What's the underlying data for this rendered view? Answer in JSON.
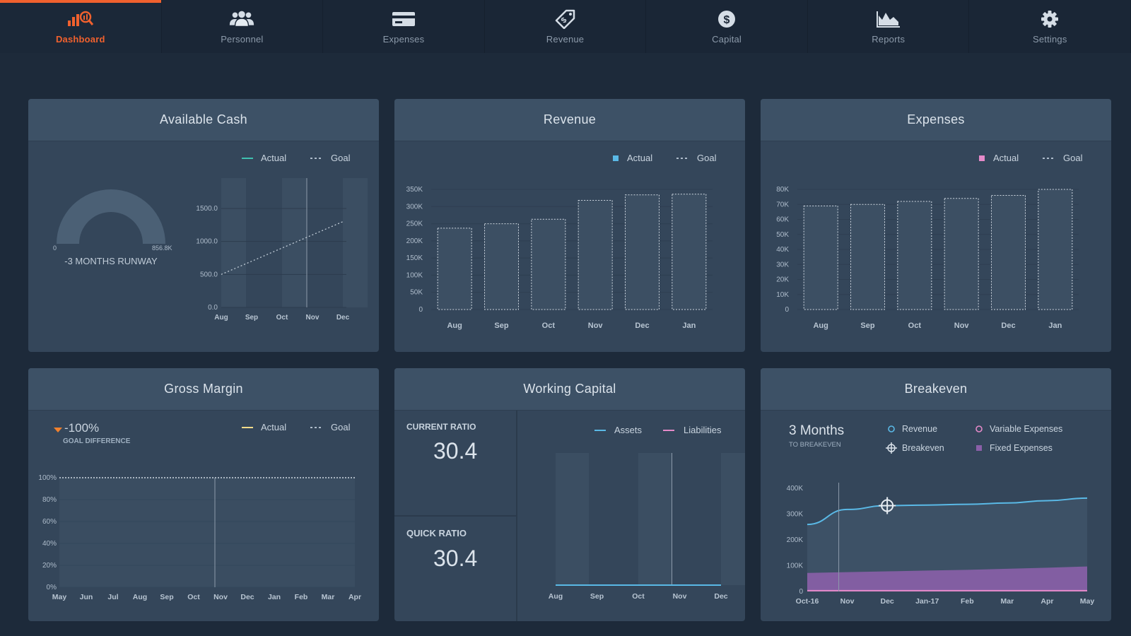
{
  "colors": {
    "accent": "#f0612e",
    "background": "#1d2a3a",
    "panel": "#34465a",
    "panel_header": "#3d5166",
    "cash_actual": "#3fc1b0",
    "revenue_actual": "#5ab9e6",
    "expenses_actual": "#e58ac9",
    "margin_actual": "#f3dc8a",
    "assets": "#5ab9e6",
    "liabilities": "#e58ac9",
    "fixed_expenses": "#8a5fa8"
  },
  "nav": {
    "items": [
      {
        "label": "Dashboard",
        "icon": "dashboard-chart-icon",
        "active": true
      },
      {
        "label": "Personnel",
        "icon": "people-icon",
        "active": false
      },
      {
        "label": "Expenses",
        "icon": "credit-card-icon",
        "active": false
      },
      {
        "label": "Revenue",
        "icon": "price-tag-icon",
        "active": false
      },
      {
        "label": "Capital",
        "icon": "dollar-coin-icon",
        "active": false
      },
      {
        "label": "Reports",
        "icon": "area-chart-icon",
        "active": false
      },
      {
        "label": "Settings",
        "icon": "gear-icon",
        "active": false
      }
    ]
  },
  "panels": {
    "cash": {
      "title": "Available Cash",
      "legend_actual": "Actual",
      "legend_goal": "Goal",
      "gauge_min": "0",
      "gauge_max": "856.8K",
      "runway": "-3 MONTHS RUNWAY"
    },
    "revenue": {
      "title": "Revenue",
      "legend_actual": "Actual",
      "legend_goal": "Goal"
    },
    "expenses": {
      "title": "Expenses",
      "legend_actual": "Actual",
      "legend_goal": "Goal"
    },
    "margin": {
      "title": "Gross Margin",
      "legend_actual": "Actual",
      "legend_goal": "Goal",
      "difference_value": "-100%",
      "difference_label": "GOAL DIFFERENCE"
    },
    "working_capital": {
      "title": "Working Capital",
      "current_ratio_label": "CURRENT RATIO",
      "current_ratio_value": "30.4",
      "quick_ratio_label": "QUICK RATIO",
      "quick_ratio_value": "30.4",
      "legend_assets": "Assets",
      "legend_liabilities": "Liabilities"
    },
    "breakeven": {
      "title": "Breakeven",
      "months_value": "3 Months",
      "months_label": "TO BREAKEVEN",
      "legend_revenue": "Revenue",
      "legend_variable": "Variable Expenses",
      "legend_breakeven": "Breakeven",
      "legend_fixed": "Fixed Expenses"
    }
  },
  "chart_data": [
    {
      "id": "cash",
      "type": "line",
      "title": "Available Cash",
      "categories": [
        "Aug",
        "Sep",
        "Oct",
        "Nov",
        "Dec"
      ],
      "y_ticks": [
        "0.0",
        "500.0",
        "1000.0",
        "1500.0"
      ],
      "ylim": [
        0,
        1500
      ],
      "goal_start": 500,
      "goal_end": 1300,
      "highlight": "Nov",
      "gauge": {
        "min": "0",
        "max": "856.8K",
        "fill": 1.0
      }
    },
    {
      "id": "revenue",
      "type": "bar",
      "title": "Revenue",
      "categories": [
        "Aug",
        "Sep",
        "Oct",
        "Nov",
        "Dec",
        "Jan"
      ],
      "goal_values": [
        237,
        250,
        263,
        318,
        334,
        336
      ],
      "actual_values": [
        0,
        0,
        0,
        0,
        0,
        0
      ],
      "y_ticks": [
        "0",
        "50K",
        "100K",
        "150K",
        "200K",
        "250K",
        "300K",
        "350K"
      ],
      "ylim": [
        0,
        350
      ]
    },
    {
      "id": "expenses",
      "type": "bar",
      "title": "Expenses",
      "categories": [
        "Aug",
        "Sep",
        "Oct",
        "Nov",
        "Dec",
        "Jan"
      ],
      "goal_values": [
        69,
        70,
        72,
        74,
        76,
        80
      ],
      "actual_values": [
        0,
        0,
        0,
        0,
        0,
        0
      ],
      "y_ticks": [
        "0",
        "10K",
        "20K",
        "30K",
        "40K",
        "50K",
        "60K",
        "70K",
        "80K"
      ],
      "ylim": [
        0,
        80
      ]
    },
    {
      "id": "margin",
      "type": "line",
      "title": "Gross Margin",
      "categories": [
        "May",
        "Jun",
        "Jul",
        "Aug",
        "Sep",
        "Oct",
        "Nov",
        "Dec",
        "Jan",
        "Feb",
        "Mar",
        "Apr"
      ],
      "y_ticks": [
        "0%",
        "20%",
        "40%",
        "60%",
        "80%",
        "100%"
      ],
      "ylim": [
        0,
        100
      ],
      "goal_values": [
        100,
        100,
        100,
        100,
        100,
        100,
        100,
        100,
        100,
        100,
        100,
        100
      ],
      "actual_values": [
        0,
        0,
        0,
        0,
        0,
        0,
        0,
        0,
        0,
        0,
        0,
        0
      ],
      "highlight": "Nov"
    },
    {
      "id": "working_capital",
      "type": "line",
      "title": "Working Capital",
      "categories": [
        "Aug",
        "Sep",
        "Oct",
        "Nov",
        "Dec"
      ],
      "series": [
        {
          "name": "Assets",
          "values": [
            0,
            0,
            0,
            0,
            0
          ]
        },
        {
          "name": "Liabilities",
          "values": [
            0,
            0,
            0,
            0,
            0
          ]
        }
      ],
      "highlight": "Nov"
    },
    {
      "id": "breakeven",
      "type": "area",
      "title": "Breakeven",
      "categories": [
        "Oct-16",
        "Nov",
        "Dec",
        "Jan-17",
        "Feb",
        "Mar",
        "Apr",
        "May"
      ],
      "y_ticks": [
        "0",
        "100K",
        "200K",
        "300K",
        "400K"
      ],
      "ylim": [
        0,
        400
      ],
      "series": [
        {
          "name": "Revenue",
          "values": [
            260,
            318,
            333,
            335,
            338,
            343,
            352,
            362
          ]
        },
        {
          "name": "Variable Expenses",
          "values": [
            3,
            3,
            3,
            3,
            3,
            3,
            3,
            3
          ]
        },
        {
          "name": "Fixed Expenses",
          "values": [
            72,
            75,
            78,
            81,
            84,
            88,
            92,
            97
          ]
        }
      ],
      "breakeven_point": {
        "x": "Dec",
        "y": 333
      },
      "highlight": "Nov"
    }
  ]
}
